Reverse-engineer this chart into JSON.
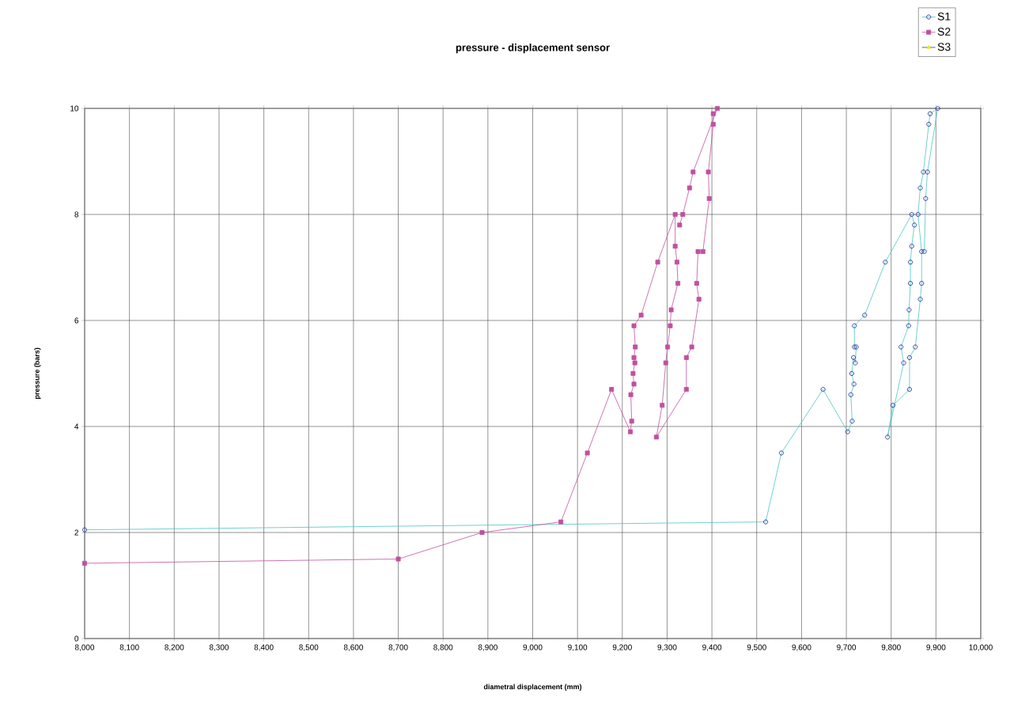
{
  "chart_data": {
    "type": "line",
    "title": "pressure - displacement sensor",
    "xlabel": "diametral displacement (mm)",
    "ylabel": "pressure (bars)",
    "xlim": [
      8000,
      10000
    ],
    "ylim": [
      0,
      10
    ],
    "xticks": [
      {
        "value": 8000,
        "label": "8,000"
      },
      {
        "value": 8100,
        "label": "8,100"
      },
      {
        "value": 8200,
        "label": "8,200"
      },
      {
        "value": 8300,
        "label": "8,300"
      },
      {
        "value": 8400,
        "label": "8,400"
      },
      {
        "value": 8500,
        "label": "8,500"
      },
      {
        "value": 8600,
        "label": "8,600"
      },
      {
        "value": 8700,
        "label": "8,700"
      },
      {
        "value": 8800,
        "label": "8,800"
      },
      {
        "value": 8900,
        "label": "8,900"
      },
      {
        "value": 9000,
        "label": "9,000"
      },
      {
        "value": 9100,
        "label": "9,100"
      },
      {
        "value": 9200,
        "label": "9,200"
      },
      {
        "value": 9300,
        "label": "9,300"
      },
      {
        "value": 9400,
        "label": "9,400"
      },
      {
        "value": 9500,
        "label": "9,500"
      },
      {
        "value": 9600,
        "label": "9,600"
      },
      {
        "value": 9700,
        "label": "9,700"
      },
      {
        "value": 9800,
        "label": "9,800"
      },
      {
        "value": 9900,
        "label": "9,900"
      },
      {
        "value": 10000,
        "label": "10,000"
      }
    ],
    "yticks": [
      0,
      2,
      4,
      6,
      8,
      10
    ],
    "grid": true,
    "legend": "top right",
    "series": [
      {
        "name": "S1",
        "color": "#4cc4c4",
        "marker": "circle",
        "x": [
          8000,
          9520,
          9555,
          9648,
          9703,
          9713,
          9710,
          9717,
          9712,
          9716,
          9720,
          9722,
          9718,
          9718,
          9741,
          9787,
          9846,
          9852,
          9846,
          9843,
          9843,
          9840,
          9839,
          9822,
          9828,
          9792,
          9804,
          9841,
          9841,
          9854,
          9865,
          9868,
          9868,
          9860,
          9865,
          9872,
          9884,
          9887,
          9904,
          9881,
          9877,
          9874
        ],
        "values": [
          2.05,
          2.2,
          3.5,
          4.7,
          3.9,
          4.1,
          4.6,
          4.8,
          5.0,
          5.3,
          5.2,
          5.5,
          5.5,
          5.9,
          6.1,
          7.1,
          8.0,
          7.8,
          7.4,
          7.1,
          6.7,
          6.2,
          5.9,
          5.5,
          5.2,
          3.8,
          4.4,
          4.7,
          5.3,
          5.5,
          6.4,
          6.7,
          7.3,
          8.0,
          8.5,
          8.8,
          9.7,
          9.9,
          10.0,
          8.8,
          8.3,
          7.3
        ]
      },
      {
        "name": "S2",
        "color": "#c050a0",
        "marker": "square",
        "x": [
          8000,
          8700,
          8887,
          9063,
          9122,
          9176,
          9218,
          9221,
          9219,
          9226,
          9224,
          9228,
          9226,
          9229,
          9226,
          9242,
          9279,
          9318,
          9318,
          9322,
          9324,
          9309,
          9307,
          9301,
          9297,
          9289,
          9276,
          9343,
          9343,
          9355,
          9371,
          9366,
          9369,
          9380,
          9394,
          9392,
          9403,
          9403,
          9412,
          9358,
          9350,
          9335,
          9328
        ],
        "values": [
          1.42,
          1.5,
          2.0,
          2.2,
          3.5,
          4.7,
          3.9,
          4.1,
          4.6,
          4.8,
          5.0,
          5.2,
          5.3,
          5.5,
          5.9,
          6.1,
          7.1,
          8.0,
          7.4,
          7.1,
          6.7,
          6.2,
          5.9,
          5.5,
          5.2,
          4.4,
          3.8,
          4.7,
          5.3,
          5.5,
          6.4,
          6.7,
          7.3,
          7.3,
          8.3,
          8.8,
          9.7,
          9.9,
          10.0,
          8.8,
          8.5,
          8.0,
          7.8
        ]
      },
      {
        "name": "S3",
        "color": "#2f4f2f",
        "marker": "triangle"
      }
    ]
  }
}
